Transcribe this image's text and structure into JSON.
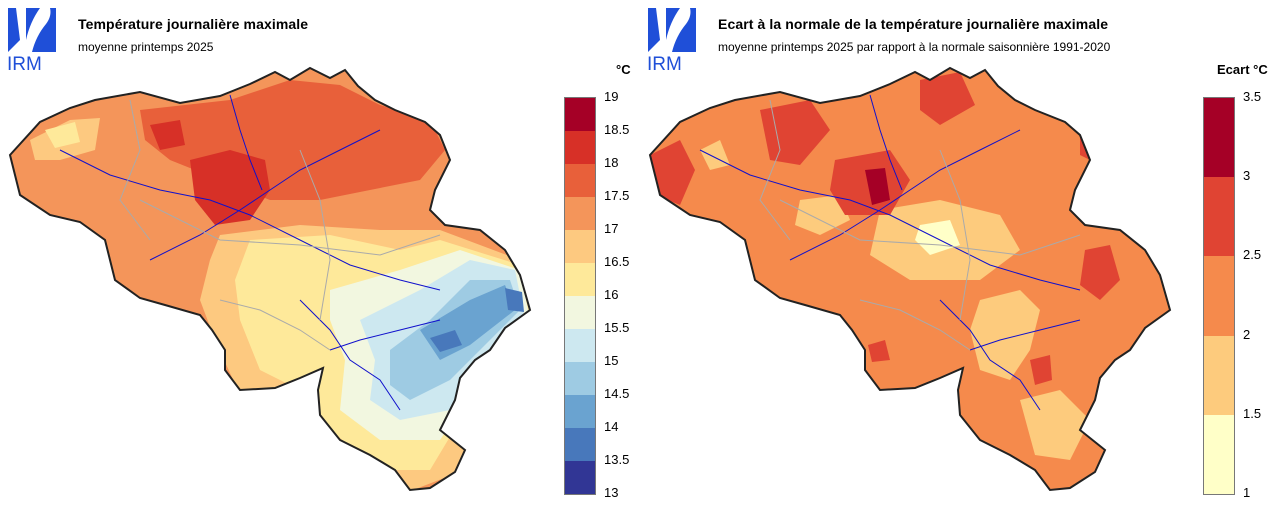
{
  "left": {
    "logo_text": "IRM",
    "title": "Température journalière maximale",
    "subtitle": "moyenne printemps 2025",
    "unit_label": "°C",
    "legend_ticks": [
      "19",
      "18.5",
      "18",
      "17.5",
      "17",
      "16.5",
      "16",
      "15.5",
      "15",
      "14.5",
      "14",
      "13.5",
      "13"
    ],
    "legend_colors": [
      "#a50026",
      "#d73027",
      "#e8603a",
      "#f4955a",
      "#fdc980",
      "#fee99a",
      "#f2f7e0",
      "#cde8f0",
      "#9ecbe3",
      "#6aa3d0",
      "#4878bb",
      "#313695"
    ]
  },
  "right": {
    "logo_text": "IRM",
    "title": "Ecart à la normale de la température journalière maximale",
    "subtitle": "moyenne printemps 2025 par rapport à la normale saisonnière 1991-2020",
    "unit_label": "Ecart °C",
    "legend_ticks": [
      "3.5",
      "3",
      "2.5",
      "2",
      "1.5",
      "1"
    ],
    "legend_colors": [
      "#a50026",
      "#e04433",
      "#f58a4c",
      "#fdcb7d",
      "#ffffc8"
    ]
  }
}
